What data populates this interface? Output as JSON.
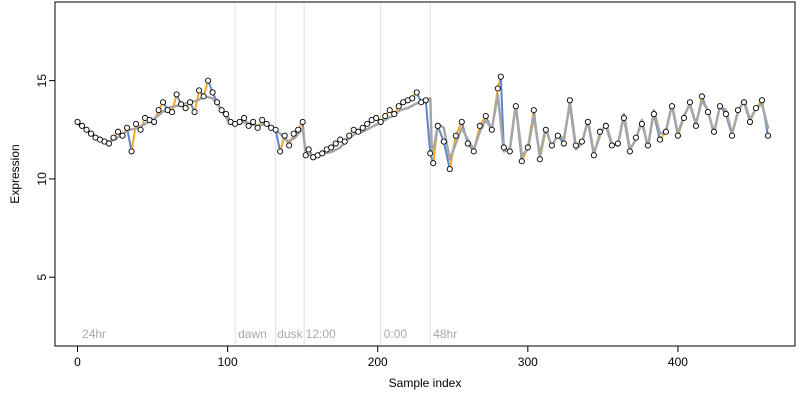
{
  "chart_data": {
    "type": "scatter",
    "title": "",
    "xlabel": "Sample index",
    "ylabel": "Expression",
    "xlim": [
      -15,
      478
    ],
    "ylim": [
      1.5,
      19
    ],
    "x_ticks": [
      0,
      100,
      200,
      300,
      400
    ],
    "y_ticks": [
      5,
      10,
      15
    ],
    "grid": false,
    "legend": "none",
    "colors": {
      "line": "#a6a6a6",
      "segment_up": "#f5a623",
      "segment_down": "#5b86c8",
      "point_fill": "#ffffff",
      "point_stroke": "#000000",
      "divider": "#e0e0e0",
      "section_label": "#a8a8a8"
    },
    "dividers": [
      105,
      132,
      151,
      202,
      235
    ],
    "section_labels": [
      {
        "x": 3,
        "text": "24hr"
      },
      {
        "x": 107,
        "text": "dawn"
      },
      {
        "x": 133,
        "text": "dusk"
      },
      {
        "x": 152,
        "text": "12:00"
      },
      {
        "x": 204,
        "text": "0:00"
      },
      {
        "x": 237,
        "text": "48hr"
      }
    ],
    "series": [
      {
        "type": "line",
        "x": [
          0,
          5,
          10,
          15,
          20,
          25,
          30,
          35,
          40,
          45,
          50,
          55,
          60,
          65,
          70,
          75,
          80,
          85,
          90,
          95,
          100,
          105,
          110,
          115,
          120,
          125,
          130,
          135,
          140,
          145,
          150,
          152,
          155,
          160,
          165,
          170,
          175,
          180,
          185,
          190,
          195,
          200,
          205,
          210,
          215,
          220,
          225,
          230,
          235,
          236,
          238,
          240,
          244,
          248,
          252,
          256,
          260,
          264,
          268,
          272,
          276,
          280,
          284,
          288,
          292,
          296,
          300,
          304,
          308,
          312,
          316,
          320,
          324,
          328,
          332,
          336,
          340,
          344,
          348,
          352,
          356,
          360,
          364,
          368,
          372,
          376,
          380,
          384,
          388,
          392,
          396,
          400,
          404,
          408,
          412,
          416,
          420,
          424,
          428,
          432,
          436,
          440,
          444,
          448,
          452,
          456,
          460
        ],
        "y": [
          12.8,
          12.6,
          12.3,
          12.0,
          11.9,
          12.0,
          12.3,
          12.5,
          12.6,
          12.8,
          13.0,
          13.3,
          13.6,
          13.7,
          13.8,
          13.9,
          14.0,
          14.2,
          14.1,
          13.6,
          13.0,
          12.8,
          12.9,
          12.8,
          12.7,
          12.8,
          12.6,
          12.3,
          11.9,
          12.1,
          12.6,
          11.3,
          11.2,
          11.2,
          11.3,
          11.4,
          11.6,
          12.0,
          12.3,
          12.4,
          12.6,
          12.8,
          13.0,
          13.2,
          13.5,
          13.6,
          13.8,
          14.0,
          14.1,
          11.4,
          11.8,
          12.8,
          12.6,
          11.0,
          11.8,
          12.6,
          12.0,
          11.5,
          12.4,
          13.0,
          12.5,
          14.3,
          11.4,
          11.5,
          13.8,
          11.2,
          11.5,
          13.2,
          11.2,
          12.6,
          11.6,
          12.3,
          12.0,
          13.8,
          11.5,
          11.8,
          13.0,
          11.3,
          12.2,
          12.8,
          11.8,
          11.7,
          13.3,
          11.5,
          12.0,
          13.0,
          11.6,
          13.5,
          12.3,
          12.4,
          13.8,
          12.3,
          13.2,
          13.8,
          12.8,
          14.0,
          13.5,
          12.3,
          13.7,
          13.5,
          12.3,
          13.4,
          14.0,
          13.0,
          13.6,
          13.8,
          12.6
        ]
      },
      {
        "type": "points",
        "x": [
          0,
          3,
          6,
          9,
          12,
          15,
          18,
          21,
          24,
          27,
          30,
          33,
          36,
          39,
          42,
          45,
          48,
          51,
          54,
          57,
          60,
          63,
          66,
          69,
          72,
          75,
          78,
          81,
          84,
          87,
          90,
          93,
          96,
          99,
          102,
          105,
          108,
          111,
          114,
          117,
          120,
          123,
          126,
          129,
          132,
          135,
          138,
          141,
          144,
          147,
          150,
          152,
          154,
          157,
          160,
          163,
          166,
          169,
          172,
          175,
          178,
          181,
          184,
          187,
          190,
          193,
          196,
          199,
          202,
          205,
          208,
          211,
          214,
          217,
          220,
          223,
          226,
          229,
          232,
          235,
          237,
          240,
          244,
          248,
          252,
          256,
          260,
          264,
          268,
          272,
          276,
          280,
          282,
          284,
          288,
          292,
          296,
          300,
          304,
          308,
          312,
          316,
          320,
          324,
          328,
          332,
          336,
          340,
          344,
          348,
          352,
          356,
          360,
          364,
          368,
          372,
          376,
          380,
          384,
          388,
          392,
          396,
          400,
          404,
          408,
          412,
          416,
          420,
          424,
          428,
          432,
          436,
          440,
          444,
          448,
          452,
          456,
          460
        ],
        "y": [
          12.9,
          12.7,
          12.5,
          12.3,
          12.1,
          12.0,
          11.9,
          11.8,
          12.1,
          12.4,
          12.2,
          12.6,
          11.4,
          12.8,
          12.5,
          13.1,
          13.0,
          12.9,
          13.5,
          13.9,
          13.5,
          13.4,
          14.3,
          13.8,
          13.6,
          13.9,
          13.4,
          14.5,
          14.2,
          15.0,
          14.4,
          13.9,
          13.5,
          13.3,
          12.9,
          12.8,
          12.9,
          13.1,
          12.7,
          12.9,
          12.6,
          13.0,
          12.8,
          12.6,
          12.5,
          11.4,
          12.2,
          11.7,
          12.3,
          12.5,
          12.9,
          11.2,
          11.5,
          11.1,
          11.2,
          11.3,
          11.5,
          11.6,
          11.8,
          12.0,
          11.9,
          12.2,
          12.5,
          12.4,
          12.6,
          12.8,
          13.0,
          13.1,
          12.9,
          13.2,
          13.5,
          13.3,
          13.7,
          13.9,
          14.0,
          14.1,
          14.4,
          13.9,
          14.0,
          11.3,
          10.8,
          12.7,
          11.9,
          10.5,
          12.2,
          12.9,
          11.8,
          11.4,
          12.7,
          13.2,
          12.5,
          14.6,
          15.2,
          11.6,
          11.4,
          13.7,
          10.9,
          11.6,
          13.5,
          11.0,
          12.5,
          11.7,
          12.2,
          11.8,
          14.0,
          11.7,
          11.9,
          12.9,
          11.2,
          12.4,
          12.7,
          11.7,
          11.8,
          13.1,
          11.4,
          12.1,
          12.8,
          11.7,
          13.3,
          12.0,
          12.4,
          13.7,
          12.2,
          13.1,
          13.9,
          12.7,
          14.2,
          13.4,
          12.4,
          13.7,
          13.3,
          12.2,
          13.5,
          13.9,
          12.9,
          13.6,
          14.0,
          12.2
        ]
      }
    ]
  }
}
